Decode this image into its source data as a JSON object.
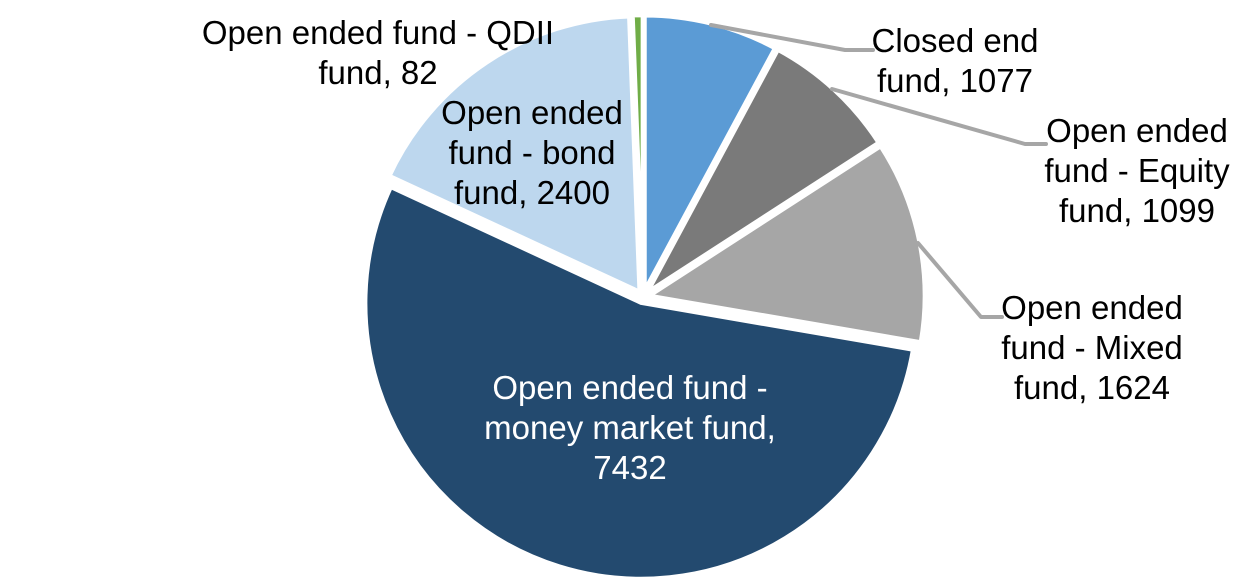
{
  "chart_data": {
    "type": "pie",
    "title": "",
    "total": 13714,
    "start_angle_deg": 0,
    "direction": "clockwise",
    "legend": "none",
    "background": "#FFFFFF",
    "label_text_color": "#000000",
    "inner_label_text_color": "#FFFFFF",
    "leader_line_color": "#A6A6A6",
    "slice_border_color": "#FFFFFF",
    "slices": [
      {
        "name": "Closed end fund",
        "value": 1077,
        "color": "#5B9BD5",
        "label_lines": [
          "Closed end",
          "fund, 1077"
        ]
      },
      {
        "name": "Open ended fund - Equity fund",
        "value": 1099,
        "color": "#7A7A7A",
        "label_lines": [
          "Open ended",
          "fund - Equity",
          "fund, 1099"
        ]
      },
      {
        "name": "Open ended fund - Mixed fund",
        "value": 1624,
        "color": "#A6A6A6",
        "label_lines": [
          "Open ended",
          "fund - Mixed",
          "fund, 1624"
        ]
      },
      {
        "name": "Open ended fund - money market fund",
        "value": 7432,
        "color": "#234A6F",
        "label_lines": [
          "Open ended fund -",
          "money market fund,",
          "7432"
        ]
      },
      {
        "name": "Open ended fund - bond fund",
        "value": 2400,
        "color": "#BDD7EE",
        "label_lines": [
          "Open ended",
          "fund - bond",
          "fund, 2400"
        ]
      },
      {
        "name": "Open ended fund - QDII fund",
        "value": 82,
        "color": "#70AD47",
        "label_lines": [
          "Open ended fund - QDII",
          "fund, 82"
        ]
      }
    ]
  }
}
